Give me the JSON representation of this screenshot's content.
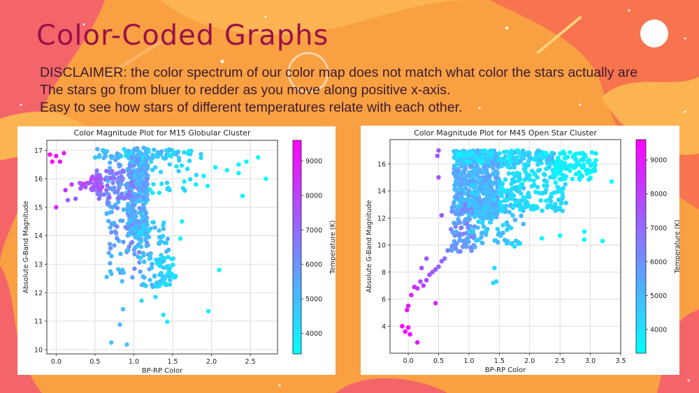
{
  "slide": {
    "title": "Color-Coded Graphs",
    "disclaimer_lines": [
      "DISCLAIMER: the color spectrum of our color map does not match what color the stars actually are",
      "The stars go from bluer to redder as you move along positive x-axis.",
      "Easy to see how stars of different temperatures relate with each other."
    ]
  },
  "colors": {
    "title": "#9a1148",
    "background_orange": "#f9a043",
    "background_pink": "#f4656a",
    "colormap_low": "#00ffff",
    "colormap_high": "#ff00ff"
  },
  "chart_data": [
    {
      "type": "scatter",
      "title": "Color Magnitude Plot for M15 Globular Cluster",
      "xlabel": "BP-RP Color",
      "ylabel": "Absolute G-Band Magnitude",
      "xlim": [
        -0.12,
        2.85
      ],
      "ylim": [
        17.35,
        9.85
      ],
      "y_inverted": true,
      "xticks": [
        0.0,
        0.5,
        1.0,
        1.5,
        2.0,
        2.5
      ],
      "xtick_labels": [
        "0.0",
        "0.5",
        "1.0",
        "1.5",
        "2.0",
        "2.5"
      ],
      "yticks": [
        10,
        11,
        12,
        13,
        14,
        15,
        16,
        17
      ],
      "ytick_labels": [
        "10",
        "11",
        "12",
        "13",
        "14",
        "15",
        "16",
        "17"
      ],
      "grid": true,
      "colorbar": {
        "label": "Temperature (K)",
        "range": [
          3400,
          9600
        ],
        "ticks": [
          4000,
          5000,
          6000,
          7000,
          8000,
          9000
        ],
        "tick_labels": [
          "4000",
          "5000",
          "6000",
          "7000",
          "8000",
          "9000"
        ]
      },
      "points": [
        [
          0.71,
          10.25
        ],
        [
          0.91,
          10.18
        ],
        [
          0.82,
          10.88
        ],
        [
          1.43,
          10.98
        ],
        [
          1.38,
          11.22
        ],
        [
          1.96,
          11.35
        ],
        [
          0.86,
          11.42
        ],
        [
          1.1,
          11.72
        ],
        [
          1.28,
          11.85
        ],
        [
          2.1,
          12.8
        ],
        [
          0.85,
          12.4
        ],
        [
          0.87,
          12.7
        ],
        [
          1.6,
          13.9
        ],
        [
          1.62,
          14.5
        ],
        [
          0.0,
          15.0
        ],
        [
          0.15,
          15.25
        ],
        [
          0.25,
          15.3
        ],
        [
          0.12,
          15.6
        ],
        [
          0.2,
          15.8
        ],
        [
          1.65,
          15.9
        ],
        [
          1.8,
          15.8
        ],
        [
          1.9,
          16.1
        ],
        [
          1.95,
          15.75
        ],
        [
          2.05,
          16.4
        ],
        [
          2.2,
          16.3
        ],
        [
          2.35,
          16.2
        ],
        [
          2.35,
          16.5
        ],
        [
          2.45,
          16.6
        ],
        [
          2.6,
          16.75
        ],
        [
          2.7,
          16.0
        ],
        [
          2.4,
          15.4
        ],
        [
          -0.05,
          16.6
        ],
        [
          0.0,
          16.8
        ],
        [
          0.05,
          16.6
        ],
        [
          0.1,
          16.9
        ],
        [
          -0.08,
          16.85
        ]
      ],
      "point_colors": [
        "#42c4ff",
        "#4ac0ff",
        "#55b5ff",
        "#18ecff",
        "#1de7ff",
        "#12f0ff",
        "#4dbaff",
        "#2fd5ff",
        "#24e0ff",
        "#0ff5ff",
        "#4bbdff",
        "#48c0ff",
        "#16eeff",
        "#14f0ff",
        "#d327ff",
        "#9d5cff",
        "#8866ff",
        "#c030ff",
        "#b93eff",
        "#12f0ff",
        "#0ff2ff",
        "#0ff3ff",
        "#0ff3ff",
        "#0ef4ff",
        "#0cf6ff",
        "#0af7ff",
        "#0af7ff",
        "#0af7ff",
        "#08f9ff",
        "#08f9ff",
        "#0af7ff",
        "#ff00ff",
        "#f20ef5",
        "#ec14f0",
        "#e61ae8",
        "#ff00ff"
      ],
      "bulk_regions": [
        {
          "x": [
            0.92,
            1.18
          ],
          "y": [
            14.0,
            17.1
          ],
          "n": 260,
          "t": [
            4600,
            6000
          ]
        },
        {
          "x": [
            0.65,
            1.2
          ],
          "y": [
            12.5,
            16.9
          ],
          "n": 140,
          "t": [
            4800,
            6400
          ]
        },
        {
          "x": [
            1.05,
            1.45
          ],
          "y": [
            12.2,
            14.5
          ],
          "n": 80,
          "t": [
            4300,
            5400
          ]
        },
        {
          "x": [
            1.3,
            1.55
          ],
          "y": [
            12.2,
            13.3
          ],
          "n": 40,
          "t": [
            4000,
            4700
          ]
        },
        {
          "x": [
            0.5,
            1.0
          ],
          "y": [
            15.3,
            16.3
          ],
          "n": 80,
          "t": [
            5600,
            7400
          ]
        },
        {
          "x": [
            0.3,
            0.6
          ],
          "y": [
            15.6,
            16.1
          ],
          "n": 40,
          "t": [
            7000,
            8200
          ]
        },
        {
          "x": [
            0.5,
            1.7
          ],
          "y": [
            16.7,
            17.05
          ],
          "n": 60,
          "t": [
            4200,
            5600
          ]
        },
        {
          "x": [
            1.2,
            1.9
          ],
          "y": [
            15.5,
            17.0
          ],
          "n": 35,
          "t": [
            3900,
            4600
          ]
        }
      ]
    },
    {
      "type": "scatter",
      "title": "Color Magnitude Plot for M45 Open Star Cluster",
      "xlabel": "BP-RP Color",
      "ylabel": "Absolute G-Band Magnitude",
      "xlim": [
        -0.3,
        3.5
      ],
      "ylim": [
        17.8,
        2.0
      ],
      "y_inverted": true,
      "xticks": [
        0.0,
        0.5,
        1.0,
        1.5,
        2.0,
        2.5,
        3.0,
        3.5
      ],
      "xtick_labels": [
        "0.0",
        "0.5",
        "1.0",
        "1.5",
        "2.0",
        "2.5",
        "3.0",
        "3.5"
      ],
      "yticks": [
        4,
        6,
        8,
        10,
        12,
        14,
        16
      ],
      "ytick_labels": [
        "4",
        "6",
        "8",
        "10",
        "12",
        "14",
        "16"
      ],
      "grid": true,
      "colorbar": {
        "label": "Temperature (K)",
        "range": [
          3300,
          9600
        ],
        "ticks": [
          4000,
          5000,
          6000,
          7000,
          8000,
          9000
        ],
        "tick_labels": [
          "4000",
          "5000",
          "6000",
          "7000",
          "8000",
          "9000"
        ]
      },
      "points": [
        [
          0.15,
          2.8
        ],
        [
          -0.05,
          3.6
        ],
        [
          -0.1,
          4.0
        ],
        [
          0.0,
          3.9
        ],
        [
          0.03,
          3.4
        ],
        [
          -0.02,
          5.2
        ],
        [
          0.0,
          5.5
        ],
        [
          0.05,
          6.3
        ],
        [
          0.1,
          6.9
        ],
        [
          0.15,
          6.8
        ],
        [
          0.25,
          7.0
        ],
        [
          0.3,
          7.4
        ],
        [
          0.2,
          7.3
        ],
        [
          0.35,
          7.8
        ],
        [
          0.4,
          8.0
        ],
        [
          0.5,
          8.4
        ],
        [
          0.45,
          8.2
        ],
        [
          0.55,
          8.8
        ],
        [
          0.6,
          9.0
        ],
        [
          0.65,
          9.6
        ],
        [
          0.45,
          5.7
        ],
        [
          0.3,
          9.0
        ],
        [
          0.22,
          8.3
        ],
        [
          1.4,
          7.2
        ],
        [
          1.45,
          7.3
        ],
        [
          1.42,
          8.3
        ],
        [
          3.2,
          10.3
        ],
        [
          2.9,
          10.4
        ],
        [
          2.9,
          11.0
        ],
        [
          3.35,
          14.7
        ],
        [
          2.2,
          10.5
        ],
        [
          2.5,
          10.7
        ],
        [
          1.75,
          9.9
        ],
        [
          0.55,
          12.2
        ],
        [
          0.5,
          15.0
        ],
        [
          0.48,
          16.6
        ],
        [
          0.5,
          17.0
        ]
      ],
      "point_colors": [
        "#e219ff",
        "#f407ff",
        "#ff00ff",
        "#fb03ff",
        "#f706ff",
        "#e814ff",
        "#e417ff",
        "#d824ff",
        "#c532ff",
        "#c532ff",
        "#ba3cff",
        "#b044ff",
        "#b444ff",
        "#a650ff",
        "#9f57ff",
        "#955eff",
        "#9a5aff",
        "#8b68ff",
        "#8570ff",
        "#7a7aff",
        "#d229ff",
        "#9f57ff",
        "#a650ff",
        "#2ad8ff",
        "#2ad8ff",
        "#26ddff",
        "#06fbff",
        "#08f9ff",
        "#08f9ff",
        "#05fcff",
        "#10f2ff",
        "#0cf6ff",
        "#20e4ff",
        "#9a5aff",
        "#9f57ff",
        "#9f57ff",
        "#9f57ff"
      ],
      "bulk_regions": [
        {
          "x": [
            0.75,
            1.5
          ],
          "y": [
            12.0,
            17.0
          ],
          "n": 500,
          "t": [
            4600,
            5800
          ]
        },
        {
          "x": [
            0.7,
            1.1
          ],
          "y": [
            9.5,
            13.0
          ],
          "n": 80,
          "t": [
            5200,
            6600
          ]
        },
        {
          "x": [
            1.0,
            1.9
          ],
          "y": [
            10.0,
            14.5
          ],
          "n": 110,
          "t": [
            4200,
            5200
          ]
        },
        {
          "x": [
            1.5,
            2.6
          ],
          "y": [
            12.5,
            17.0
          ],
          "n": 220,
          "t": [
            3700,
            4500
          ]
        },
        {
          "x": [
            2.4,
            3.1
          ],
          "y": [
            14.8,
            17.0
          ],
          "n": 90,
          "t": [
            3400,
            3900
          ]
        },
        {
          "x": [
            0.75,
            2.4
          ],
          "y": [
            16.0,
            17.0
          ],
          "n": 120,
          "t": [
            3600,
            5200
          ]
        }
      ]
    }
  ]
}
